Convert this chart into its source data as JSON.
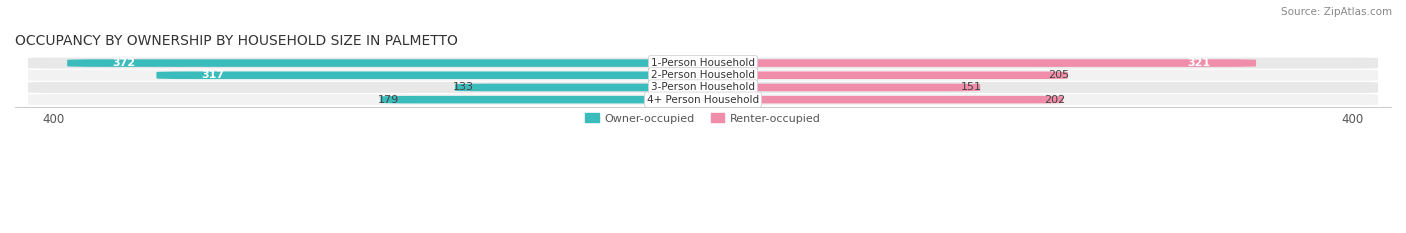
{
  "title": "OCCUPANCY BY OWNERSHIP BY HOUSEHOLD SIZE IN PALMETTO",
  "source": "Source: ZipAtlas.com",
  "categories": [
    "1-Person Household",
    "2-Person Household",
    "3-Person Household",
    "4+ Person Household"
  ],
  "owner_values": [
    372,
    317,
    133,
    179
  ],
  "renter_values": [
    321,
    205,
    151,
    202
  ],
  "owner_color": "#3BBCBC",
  "renter_color": "#F08DAA",
  "row_bg_color": "#EBEBEB",
  "axis_max": 400,
  "title_fontsize": 10,
  "source_fontsize": 7.5,
  "tick_fontsize": 8.5,
  "bar_label_fontsize": 8,
  "category_fontsize": 7.5,
  "legend_fontsize": 8,
  "background_color": "#FFFFFF",
  "row_alt_colors": [
    "#E8E8E8",
    "#F2F2F2",
    "#E8E8E8",
    "#F2F2F2"
  ],
  "owner_label_white_threshold": 200,
  "renter_label_white_threshold": 300
}
